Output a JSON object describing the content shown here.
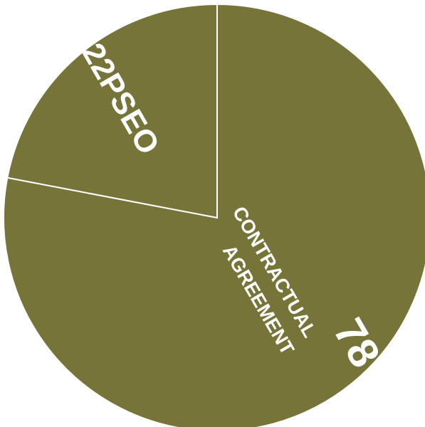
{
  "chart_data": {
    "type": "pie",
    "title": "",
    "slices": [
      {
        "label": "PSEO",
        "value": 22
      },
      {
        "label": "CONTRACTUAL AGREEMENT",
        "value": 78
      }
    ],
    "colors": {
      "fill": "#767438",
      "border": "#ffffff"
    },
    "legend": "none"
  }
}
